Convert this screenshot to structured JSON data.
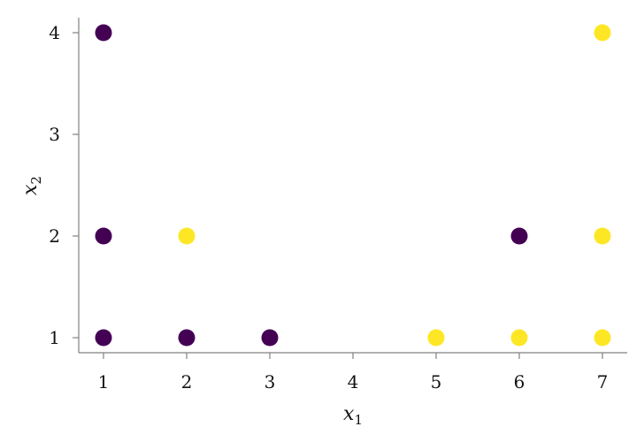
{
  "chart_data": {
    "type": "scatter",
    "title": "",
    "xlabel": {
      "base": "x",
      "sub": "1"
    },
    "ylabel": {
      "base": "x",
      "sub": "2"
    },
    "xlim": [
      0.7,
      7.3
    ],
    "ylim": [
      0.85,
      4.15
    ],
    "xticks": [
      "1",
      "2",
      "3",
      "4",
      "5",
      "6",
      "7"
    ],
    "yticks": [
      "1",
      "2",
      "3",
      "4"
    ],
    "grid": false,
    "colors": {
      "class_0": "#440154",
      "class_1": "#fde725"
    },
    "points": [
      {
        "x": 1,
        "y": 4,
        "class": 0
      },
      {
        "x": 1,
        "y": 2,
        "class": 0
      },
      {
        "x": 1,
        "y": 1,
        "class": 0
      },
      {
        "x": 2,
        "y": 1,
        "class": 0
      },
      {
        "x": 3,
        "y": 1,
        "class": 0
      },
      {
        "x": 6,
        "y": 2,
        "class": 0
      },
      {
        "x": 2,
        "y": 2,
        "class": 1
      },
      {
        "x": 5,
        "y": 1,
        "class": 1
      },
      {
        "x": 6,
        "y": 1,
        "class": 1
      },
      {
        "x": 7,
        "y": 1,
        "class": 1
      },
      {
        "x": 7,
        "y": 2,
        "class": 1
      },
      {
        "x": 7,
        "y": 4,
        "class": 1
      }
    ]
  }
}
